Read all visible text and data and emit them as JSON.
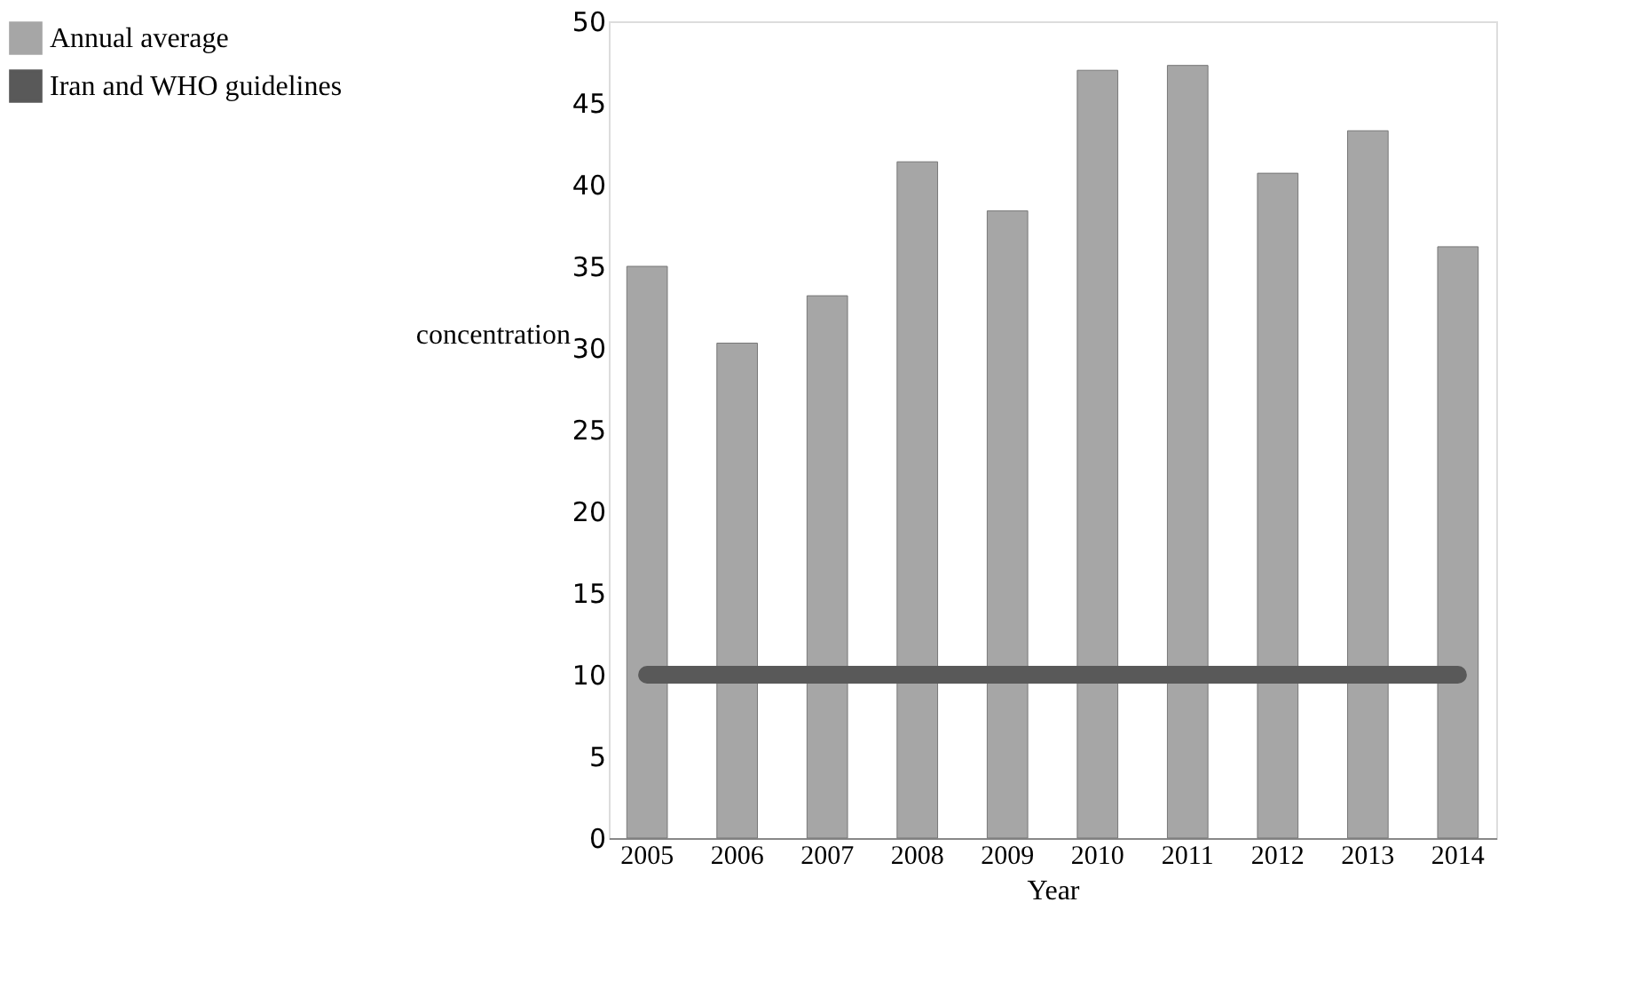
{
  "chart_data": {
    "type": "bar",
    "xlabel": "Year",
    "ylabel": "concentration",
    "categories": [
      "2005",
      "2006",
      "2007",
      "2008",
      "2009",
      "2010",
      "2011",
      "2012",
      "2013",
      "2014"
    ],
    "series": [
      {
        "name": "Annual average",
        "color": "#a6a6a6",
        "values": [
          35,
          30.3,
          33.2,
          41.4,
          38.4,
          47,
          47.3,
          40.7,
          43.3,
          36.2
        ]
      }
    ],
    "ylim": [
      0,
      50
    ],
    "yticks": [
      0,
      5,
      10,
      15,
      20,
      25,
      30,
      35,
      40,
      45,
      50
    ],
    "ref_lines": [
      {
        "axis": "y",
        "value": 10,
        "label": "Iran and WHO guidelines",
        "color": "#595959"
      }
    ],
    "grid": false,
    "legend": "left"
  }
}
